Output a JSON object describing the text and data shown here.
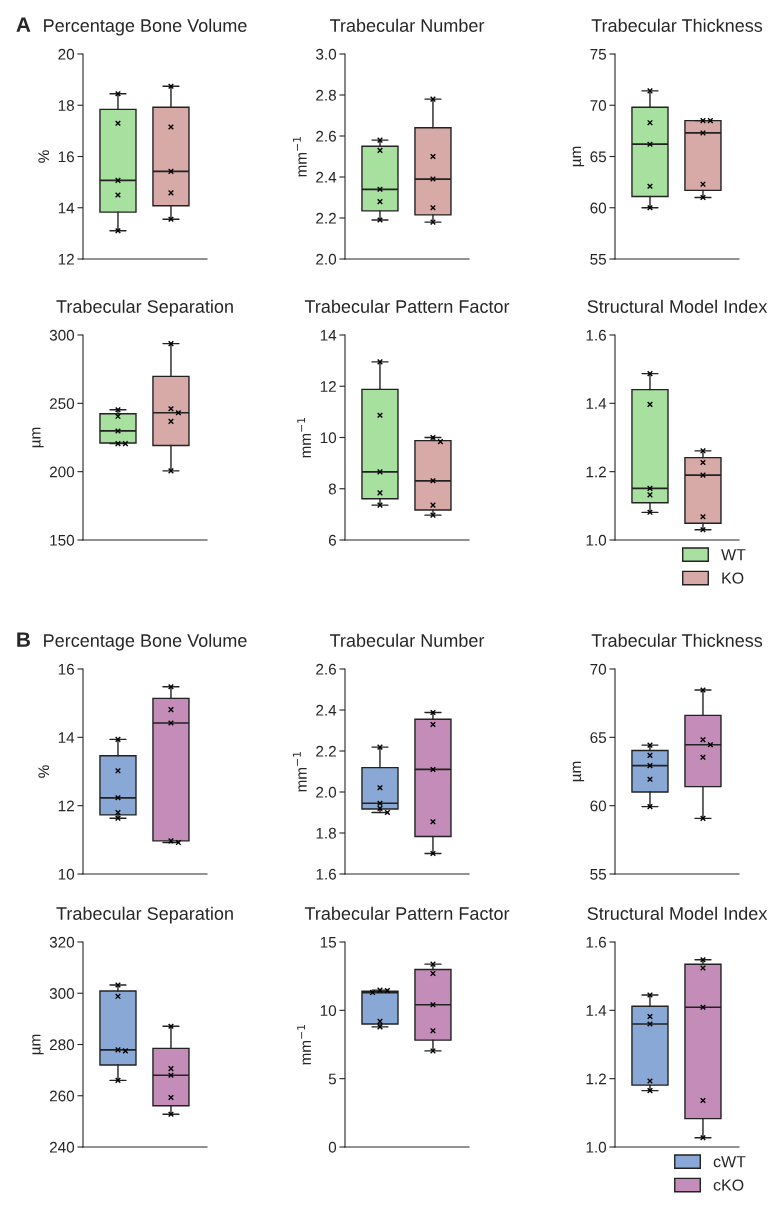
{
  "chart_data": [
    {
      "type": "box",
      "title": "Percentage Bone Volume",
      "ylabel": "%",
      "annotations": [
        "A"
      ],
      "categories": [
        null,
        null
      ],
      "ylim": [
        12,
        20
      ],
      "yticks": [
        12,
        14,
        16,
        18,
        20
      ],
      "tick_labels": "y",
      "series": [
        {
          "color": "#a8e0a0",
          "boxes": [
            {
              "low": 13.1,
              "q1": 13.83,
              "median": 15.07,
              "q3": 17.84,
              "high": 18.45
            },
            null
          ]
        },
        {
          "color": "#d7aaa8",
          "boxes": [
            null,
            {
              "low": 13.55,
              "q1": 14.08,
              "median": 15.42,
              "q3": 17.92,
              "high": 18.74
            }
          ]
        },
        {
          "type": "scatter",
          "color": "#000000",
          "marker": "cross",
          "values": [
            18.45,
            18.74
          ]
        },
        {
          "type": "scatter",
          "color": "#000000",
          "marker": "cross",
          "values": [
            17.3,
            17.15
          ]
        },
        {
          "type": "scatter",
          "color": "#000000",
          "marker": "cross",
          "values": [
            15.07,
            15.42
          ]
        },
        {
          "type": "scatter",
          "color": "#000000",
          "marker": "cross",
          "values": [
            14.5,
            14.58
          ]
        },
        {
          "type": "scatter",
          "color": "#000000",
          "marker": "cross",
          "values": [
            13.1,
            13.55
          ]
        }
      ]
    },
    {
      "type": "box",
      "title": "Trabecular Number",
      "ylabel": "mm$^{−1}$",
      "categories": [
        null,
        null
      ],
      "ylim": [
        2.0,
        3.0
      ],
      "yticks": [
        {
          "value": 2.0,
          "label": "2.0"
        },
        2.2,
        2.4,
        2.6,
        2.8,
        {
          "value": 3.0,
          "label": "3.0"
        }
      ],
      "tick_labels": "y",
      "series": [
        {
          "color": "#a8e0a0",
          "boxes": [
            {
              "low": 2.19,
              "q1": 2.235,
              "median": 2.34,
              "q3": 2.55,
              "high": 2.58
            },
            null
          ]
        },
        {
          "color": "#d7aaa8",
          "boxes": [
            null,
            {
              "low": 2.18,
              "q1": 2.215,
              "median": 2.39,
              "q3": 2.64,
              "high": 2.78
            }
          ]
        },
        {
          "type": "scatter",
          "color": "#000000",
          "marker": "cross",
          "values": [
            2.58,
            2.78
          ]
        },
        {
          "type": "scatter",
          "color": "#000000",
          "marker": "cross",
          "values": [
            2.53,
            2.5
          ]
        },
        {
          "type": "scatter",
          "color": "#000000",
          "marker": "cross",
          "values": [
            2.34,
            2.39
          ]
        },
        {
          "type": "scatter",
          "color": "#000000",
          "marker": "cross",
          "values": [
            2.28,
            2.25
          ]
        },
        {
          "type": "scatter",
          "color": "#000000",
          "marker": "cross",
          "values": [
            2.19,
            2.18
          ]
        }
      ]
    },
    {
      "type": "box",
      "title": "Trabecular Thickness",
      "ylabel": "µm",
      "categories": [
        null,
        null
      ],
      "ylim": [
        55,
        75
      ],
      "yticks": [
        55,
        60,
        65,
        70,
        75
      ],
      "tick_labels": "y",
      "series": [
        {
          "color": "#a8e0a0",
          "boxes": [
            {
              "low": 60.0,
              "q1": 61.1,
              "median": 66.2,
              "q3": 69.8,
              "high": 71.4
            },
            null
          ]
        },
        {
          "color": "#d7aaa8",
          "boxes": [
            null,
            {
              "low": 61.0,
              "q1": 61.7,
              "median": 67.3,
              "q3": 68.5,
              "high": 68.5
            }
          ]
        },
        {
          "type": "scatter",
          "color": "#000000",
          "marker": "cross",
          "values": [
            71.4,
            68.5
          ]
        },
        {
          "type": "scatter",
          "color": "#000000",
          "marker": "cross",
          "values": [
            68.3,
            68.5
          ]
        },
        {
          "type": "scatter",
          "color": "#000000",
          "marker": "cross",
          "values": [
            66.2,
            67.3
          ]
        },
        {
          "type": "scatter",
          "color": "#000000",
          "marker": "cross",
          "values": [
            62.1,
            62.3
          ]
        },
        {
          "type": "scatter",
          "color": "#000000",
          "marker": "cross",
          "values": [
            60.0,
            61.0
          ]
        }
      ]
    },
    {
      "type": "box",
      "title": "Trabecular Separation",
      "ylabel": "µm",
      "categories": [
        null,
        null
      ],
      "ylim": [
        150,
        300
      ],
      "yticks": [
        150,
        200,
        250,
        300
      ],
      "tick_labels": "y",
      "series": [
        {
          "color": "#a8e0a0",
          "boxes": [
            {
              "low": 220.5,
              "q1": 221,
              "median": 229.8,
              "q3": 242.4,
              "high": 245.3
            },
            null
          ]
        },
        {
          "color": "#d7aaa8",
          "boxes": [
            null,
            {
              "low": 200.6,
              "q1": 219.1,
              "median": 243.1,
              "q3": 269.7,
              "high": 293.7
            }
          ]
        },
        {
          "type": "scatter",
          "color": "#000000",
          "marker": "cross",
          "values": [
            245.3,
            293.7
          ]
        },
        {
          "type": "scatter",
          "color": "#000000",
          "marker": "cross",
          "values": [
            240.5,
            246.0
          ]
        },
        {
          "type": "scatter",
          "color": "#000000",
          "marker": "cross",
          "values": [
            229.8,
            243.1
          ]
        },
        {
          "type": "scatter",
          "color": "#000000",
          "marker": "cross",
          "values": [
            220.5,
            236.8
          ]
        },
        {
          "type": "scatter",
          "color": "#000000",
          "marker": "cross",
          "values": [
            220.5,
            200.6
          ]
        }
      ]
    },
    {
      "type": "box",
      "title": "Trabecular Pattern Factor",
      "ylabel": "mm$^{−1}$",
      "categories": [
        null,
        null
      ],
      "ylim": [
        6,
        14
      ],
      "yticks": [
        6,
        8,
        10,
        12,
        14
      ],
      "tick_labels": "y",
      "series": [
        {
          "color": "#a8e0a0",
          "boxes": [
            {
              "low": 7.36,
              "q1": 7.61,
              "median": 8.66,
              "q3": 11.88,
              "high": 12.95
            },
            null
          ]
        },
        {
          "color": "#d7aaa8",
          "boxes": [
            null,
            {
              "low": 6.97,
              "q1": 7.17,
              "median": 8.31,
              "q3": 9.88,
              "high": 10.0
            }
          ]
        },
        {
          "type": "scatter",
          "color": "#000000",
          "marker": "cross",
          "values": [
            12.95,
            10.0
          ]
        },
        {
          "type": "scatter",
          "color": "#000000",
          "marker": "cross",
          "values": [
            10.87,
            9.84
          ]
        },
        {
          "type": "scatter",
          "color": "#000000",
          "marker": "cross",
          "values": [
            8.66,
            8.31
          ]
        },
        {
          "type": "scatter",
          "color": "#000000",
          "marker": "cross",
          "values": [
            7.84,
            7.36
          ]
        },
        {
          "type": "scatter",
          "color": "#000000",
          "marker": "cross",
          "values": [
            7.36,
            6.97
          ]
        }
      ]
    },
    {
      "type": "box",
      "title": "Structural Model Index",
      "categories": [
        null,
        null
      ],
      "ylim": [
        1.0,
        1.6
      ],
      "yticks": [
        {
          "value": 1.0,
          "label": "1.0"
        },
        1.2,
        1.4,
        1.6
      ],
      "tick_labels": "y",
      "legend": "bottom right",
      "series": [
        {
          "name": "WT",
          "color": "#a8e0a0",
          "boxes": [
            {
              "low": 1.081,
              "q1": 1.109,
              "median": 1.151,
              "q3": 1.44,
              "high": 1.487
            },
            null
          ]
        },
        {
          "name": "KO",
          "color": "#d7aaa8",
          "boxes": [
            null,
            {
              "low": 1.03,
              "q1": 1.049,
              "median": 1.19,
              "q3": 1.241,
              "high": 1.261
            }
          ]
        },
        {
          "type": "scatter",
          "color": "#000000",
          "marker": "cross",
          "values": [
            1.487,
            1.261
          ]
        },
        {
          "type": "scatter",
          "color": "#000000",
          "marker": "cross",
          "values": [
            1.397,
            1.227
          ]
        },
        {
          "type": "scatter",
          "color": "#000000",
          "marker": "cross",
          "values": [
            1.151,
            1.19
          ]
        },
        {
          "type": "scatter",
          "color": "#000000",
          "marker": "cross",
          "values": [
            1.132,
            1.068
          ]
        },
        {
          "type": "scatter",
          "color": "#000000",
          "marker": "cross",
          "values": [
            1.081,
            1.03
          ]
        }
      ]
    },
    {
      "type": "box",
      "title": "Percentage Bone Volume",
      "ylabel": "%",
      "annotations": [
        "B"
      ],
      "categories": [
        null,
        null
      ],
      "ylim": [
        10,
        16
      ],
      "yticks": [
        10,
        12,
        14,
        16
      ],
      "tick_labels": "y",
      "series": [
        {
          "color": "#8aa8d6",
          "boxes": [
            {
              "low": 11.63,
              "q1": 11.73,
              "median": 12.23,
              "q3": 13.46,
              "high": 13.94
            },
            null
          ]
        },
        {
          "color": "#c48cb8",
          "boxes": [
            null,
            {
              "low": 10.92,
              "q1": 10.97,
              "median": 14.42,
              "q3": 15.14,
              "high": 15.48
            }
          ]
        },
        {
          "type": "scatter",
          "color": "#000000",
          "marker": "cross",
          "values": [
            13.94,
            15.48
          ]
        },
        {
          "type": "scatter",
          "color": "#000000",
          "marker": "cross",
          "values": [
            13.02,
            14.81
          ]
        },
        {
          "type": "scatter",
          "color": "#000000",
          "marker": "cross",
          "values": [
            12.23,
            14.42
          ]
        },
        {
          "type": "scatter",
          "color": "#000000",
          "marker": "cross",
          "values": [
            11.8,
            10.97
          ]
        },
        {
          "type": "scatter",
          "color": "#000000",
          "marker": "cross",
          "values": [
            11.63,
            10.92
          ]
        }
      ]
    },
    {
      "type": "box",
      "title": "Trabecular Number",
      "ylabel": "mm$^{−1}$",
      "categories": [
        null,
        null
      ],
      "ylim": [
        1.6,
        2.6
      ],
      "yticks": [
        1.6,
        1.8,
        {
          "value": 2.0,
          "label": "2.0"
        },
        2.2,
        2.4,
        2.6
      ],
      "tick_labels": "y",
      "series": [
        {
          "color": "#8aa8d6",
          "boxes": [
            {
              "low": 1.9,
              "q1": 1.917,
              "median": 1.945,
              "q3": 2.119,
              "high": 2.219
            },
            null
          ]
        },
        {
          "color": "#c48cb8",
          "boxes": [
            null,
            {
              "low": 1.7,
              "q1": 1.783,
              "median": 2.11,
              "q3": 2.355,
              "high": 2.388
            }
          ]
        },
        {
          "type": "scatter",
          "color": "#000000",
          "marker": "cross",
          "values": [
            2.219,
            2.388
          ]
        },
        {
          "type": "scatter",
          "color": "#000000",
          "marker": "cross",
          "values": [
            2.021,
            2.329
          ]
        },
        {
          "type": "scatter",
          "color": "#000000",
          "marker": "cross",
          "values": [
            1.945,
            2.11
          ]
        },
        {
          "type": "scatter",
          "color": "#000000",
          "marker": "cross",
          "values": [
            1.92,
            1.855
          ]
        },
        {
          "type": "scatter",
          "color": "#000000",
          "marker": "cross",
          "values": [
            1.9,
            1.7
          ]
        }
      ]
    },
    {
      "type": "box",
      "title": "Trabecular Thickness",
      "ylabel": "µm",
      "categories": [
        null,
        null
      ],
      "ylim": [
        55,
        70
      ],
      "yticks": [
        55,
        60,
        65,
        70
      ],
      "tick_labels": "y",
      "series": [
        {
          "color": "#8aa8d6",
          "boxes": [
            {
              "low": 59.93,
              "q1": 61.0,
              "median": 62.93,
              "q3": 64.04,
              "high": 64.43
            },
            null
          ]
        },
        {
          "color": "#c48cb8",
          "boxes": [
            null,
            {
              "low": 59.07,
              "q1": 61.39,
              "median": 64.46,
              "q3": 66.61,
              "high": 68.46
            }
          ]
        },
        {
          "type": "scatter",
          "color": "#000000",
          "marker": "cross",
          "values": [
            64.43,
            68.46
          ]
        },
        {
          "type": "scatter",
          "color": "#000000",
          "marker": "cross",
          "values": [
            63.68,
            64.82
          ]
        },
        {
          "type": "scatter",
          "color": "#000000",
          "marker": "cross",
          "values": [
            62.93,
            64.46
          ]
        },
        {
          "type": "scatter",
          "color": "#000000",
          "marker": "cross",
          "values": [
            61.93,
            63.54
          ]
        },
        {
          "type": "scatter",
          "color": "#000000",
          "marker": "cross",
          "values": [
            59.93,
            59.07
          ]
        }
      ]
    },
    {
      "type": "box",
      "title": "Trabecular Separation",
      "ylabel": "µm",
      "categories": [
        null,
        null
      ],
      "ylim": [
        240,
        320
      ],
      "yticks": [
        240,
        260,
        280,
        300,
        320
      ],
      "tick_labels": "y",
      "series": [
        {
          "color": "#8aa8d6",
          "boxes": [
            {
              "low": 266.0,
              "q1": 272.0,
              "median": 277.9,
              "q3": 300.9,
              "high": 303.2
            },
            null
          ]
        },
        {
          "color": "#c48cb8",
          "boxes": [
            null,
            {
              "low": 252.8,
              "q1": 256.1,
              "median": 268.0,
              "q3": 278.5,
              "high": 287.1
            }
          ]
        },
        {
          "type": "scatter",
          "color": "#000000",
          "marker": "cross",
          "values": [
            303.2,
            287.1
          ]
        },
        {
          "type": "scatter",
          "color": "#000000",
          "marker": "cross",
          "values": [
            298.8,
            270.6
          ]
        },
        {
          "type": "scatter",
          "color": "#000000",
          "marker": "cross",
          "values": [
            277.9,
            268.0
          ]
        },
        {
          "type": "scatter",
          "color": "#000000",
          "marker": "cross",
          "values": [
            277.5,
            259.3
          ]
        },
        {
          "type": "scatter",
          "color": "#000000",
          "marker": "cross",
          "values": [
            266.0,
            252.8
          ]
        }
      ]
    },
    {
      "type": "box",
      "title": "Trabecular Pattern Factor",
      "ylabel": "mm$^{−1}$",
      "categories": [
        null,
        null
      ],
      "ylim": [
        0,
        15
      ],
      "yticks": [
        0,
        5,
        10,
        15
      ],
      "tick_labels": "y",
      "series": [
        {
          "color": "#8aa8d6",
          "boxes": [
            {
              "low": 8.79,
              "q1": 9.0,
              "median": 11.3,
              "q3": 11.4,
              "high": 11.48
            },
            null
          ]
        },
        {
          "color": "#c48cb8",
          "boxes": [
            null,
            {
              "low": 7.03,
              "q1": 7.82,
              "median": 10.41,
              "q3": 12.99,
              "high": 13.38
            }
          ]
        },
        {
          "type": "scatter",
          "color": "#000000",
          "marker": "cross",
          "values": [
            11.48,
            13.38
          ]
        },
        {
          "type": "scatter",
          "color": "#000000",
          "marker": "cross",
          "values": [
            11.45,
            12.7
          ]
        },
        {
          "type": "scatter",
          "color": "#000000",
          "marker": "cross",
          "values": [
            11.3,
            10.41
          ]
        },
        {
          "type": "scatter",
          "color": "#000000",
          "marker": "cross",
          "values": [
            9.19,
            8.51
          ]
        },
        {
          "type": "scatter",
          "color": "#000000",
          "marker": "cross",
          "values": [
            8.79,
            7.03
          ]
        }
      ]
    },
    {
      "type": "box",
      "title": "Structural Model Index",
      "categories": [
        null,
        null
      ],
      "ylim": [
        1.0,
        1.6
      ],
      "yticks": [
        {
          "value": 1.0,
          "label": "1.0"
        },
        1.2,
        1.4,
        1.6
      ],
      "tick_labels": "y",
      "legend": "bottom right",
      "series": [
        {
          "name": "cWT",
          "color": "#8aa8d6",
          "boxes": [
            {
              "low": 1.165,
              "q1": 1.181,
              "median": 1.36,
              "q3": 1.412,
              "high": 1.445
            },
            null
          ]
        },
        {
          "name": "cKO",
          "color": "#c48cb8",
          "boxes": [
            null,
            {
              "low": 1.027,
              "q1": 1.083,
              "median": 1.409,
              "q3": 1.535,
              "high": 1.548
            }
          ]
        },
        {
          "type": "scatter",
          "color": "#000000",
          "marker": "cross",
          "values": [
            1.445,
            1.548
          ]
        },
        {
          "type": "scatter",
          "color": "#000000",
          "marker": "cross",
          "values": [
            1.382,
            1.524
          ]
        },
        {
          "type": "scatter",
          "color": "#000000",
          "marker": "cross",
          "values": [
            1.36,
            1.409
          ]
        },
        {
          "type": "scatter",
          "color": "#000000",
          "marker": "cross",
          "values": [
            1.193,
            1.136
          ]
        },
        {
          "type": "scatter",
          "color": "#000000",
          "marker": "cross",
          "values": [
            1.165,
            1.027
          ]
        }
      ]
    }
  ]
}
